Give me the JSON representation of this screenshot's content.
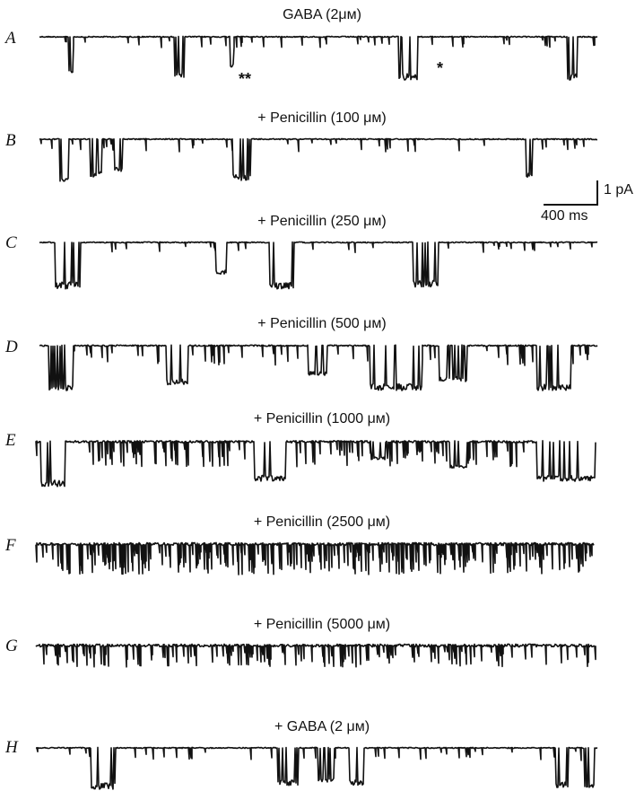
{
  "panels": [
    {
      "label": "A",
      "title": "GABA (2μᴍ)"
    },
    {
      "label": "B",
      "title": "+ Penicillin (100 μᴍ)"
    },
    {
      "label": "C",
      "title": "+ Penicillin (250 μᴍ)"
    },
    {
      "label": "D",
      "title": "+ Penicillin (500 μᴍ)"
    },
    {
      "label": "E",
      "title": "+ Penicillin (1000 μᴍ)"
    },
    {
      "label": "F",
      "title": "+ Penicillin (2500 μᴍ)"
    },
    {
      "label": "G",
      "title": "+ Penicillin (5000 μᴍ)"
    },
    {
      "label": "H",
      "title": "+ GABA (2 μᴍ)"
    }
  ],
  "annotations": {
    "double_star": "**",
    "single_star": "*"
  },
  "scale_bar": {
    "current": "1 pA",
    "time": "400 ms"
  },
  "colors": {
    "trace": "#111111",
    "background": "#ffffff"
  }
}
